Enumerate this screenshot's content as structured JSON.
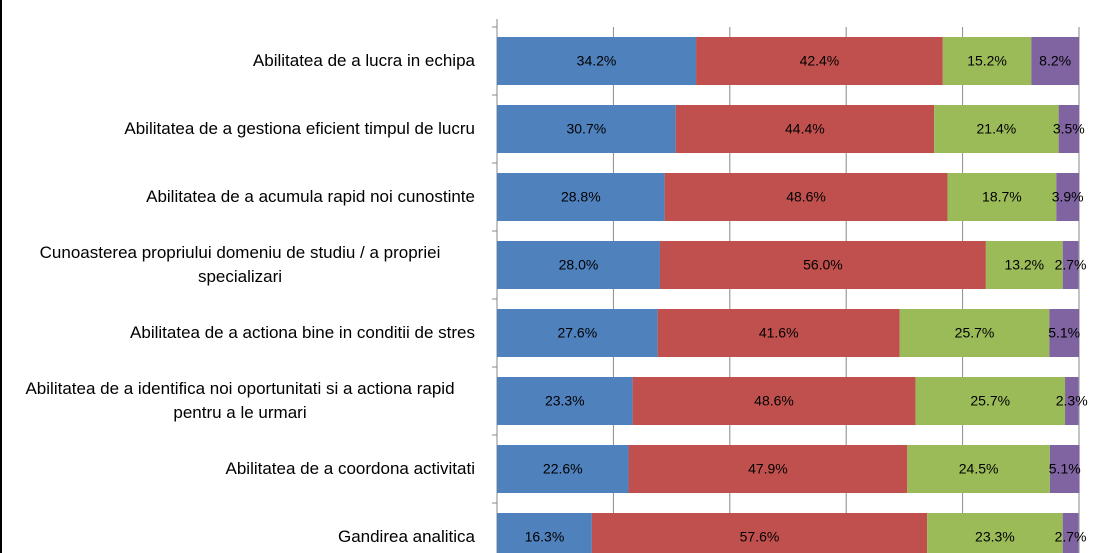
{
  "chart_data": {
    "type": "stacked_barh",
    "categories": [
      "Abilitatea de a lucra in echipa",
      "Abilitatea de a gestiona eficient timpul de lucru",
      "Abilitatea de a acumula rapid noi cunostinte",
      "Cunoasterea propriului domeniu de studiu / a propriei specializari",
      "Abilitatea de a actiona bine in conditii de stres",
      "Abilitatea de a identifica noi oportunitati si a actiona rapid pentru a le urmari",
      "Abilitatea de a coordona activitati",
      "Gandirea analitica"
    ],
    "series": [
      {
        "color": "#4f81bd",
        "values": [
          34.2,
          30.7,
          28.8,
          28.0,
          27.6,
          23.3,
          22.6,
          16.3
        ],
        "value_labels": [
          "34.2%",
          "30.7%",
          "28.8%",
          "28.0%",
          "27.6%",
          "23.3%",
          "22.6%",
          "16.3%"
        ]
      },
      {
        "color": "#c0504d",
        "values": [
          42.4,
          44.4,
          48.6,
          56.0,
          41.6,
          48.6,
          47.9,
          57.6
        ],
        "value_labels": [
          "42.4%",
          "44.4%",
          "48.6%",
          "56.0%",
          "41.6%",
          "48.6%",
          "47.9%",
          "57.6%"
        ]
      },
      {
        "color": "#9bbb59",
        "values": [
          15.2,
          21.4,
          18.7,
          13.2,
          25.7,
          25.7,
          24.5,
          23.3
        ],
        "value_labels": [
          "15.2%",
          "21.4%",
          "18.7%",
          "13.2%",
          "25.7%",
          "25.7%",
          "24.5%",
          "23.3%"
        ]
      },
      {
        "color": "#8064a2",
        "values": [
          8.2,
          3.5,
          3.9,
          2.7,
          5.1,
          2.3,
          5.1,
          2.7
        ],
        "value_labels": [
          "8.2%",
          "3.5%",
          "3.9%",
          "2.7%",
          "5.1%",
          "2.3%",
          "5.1%",
          "2.7%"
        ]
      }
    ],
    "xlim": [
      0,
      100
    ],
    "xticks": [
      0,
      20,
      40,
      60,
      80,
      100
    ],
    "grid": true
  }
}
